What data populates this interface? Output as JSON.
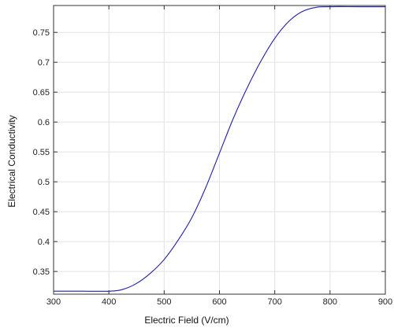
{
  "chart_data": {
    "type": "line",
    "title": "",
    "xlabel": "Electric Field (V/cm)",
    "ylabel": "Electrical Conductivity",
    "xlim": [
      300,
      900
    ],
    "ylim": [
      0.312,
      0.795
    ],
    "x_ticks": [
      300,
      400,
      500,
      600,
      700,
      800,
      900
    ],
    "y_ticks": [
      0.35,
      0.4,
      0.45,
      0.5,
      0.55,
      0.6,
      0.65,
      0.7,
      0.75
    ],
    "x_tick_labels": [
      "300",
      "400",
      "500",
      "600",
      "700",
      "800",
      "900"
    ],
    "y_tick_labels": [
      "0.35",
      "0.4",
      "0.45",
      "0.5",
      "0.55",
      "0.6",
      "0.65",
      "0.7",
      "0.75"
    ],
    "grid": true,
    "legend": "none",
    "series": [
      {
        "color": "#1f1fa8",
        "x": [
          300,
          350,
          400,
          425,
          450,
          475,
          500,
          525,
          550,
          575,
          600,
          625,
          650,
          675,
          700,
          725,
          750,
          775,
          800,
          850,
          900
        ],
        "y": [
          0.317,
          0.317,
          0.317,
          0.32,
          0.33,
          0.347,
          0.37,
          0.402,
          0.44,
          0.49,
          0.548,
          0.606,
          0.657,
          0.702,
          0.74,
          0.768,
          0.785,
          0.792,
          0.793,
          0.793,
          0.793
        ]
      }
    ]
  }
}
